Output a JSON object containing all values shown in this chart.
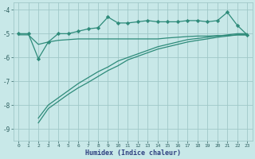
{
  "title": "",
  "xlabel": "Humidex (Indice chaleur)",
  "x": [
    0,
    1,
    2,
    3,
    4,
    5,
    6,
    7,
    8,
    9,
    10,
    11,
    12,
    13,
    14,
    15,
    16,
    17,
    18,
    19,
    20,
    21,
    22,
    23
  ],
  "line1_y": [
    -5.0,
    -5.0,
    -6.05,
    -5.35,
    -5.0,
    -5.0,
    -4.9,
    -4.8,
    -4.75,
    -4.3,
    -4.55,
    -4.55,
    -4.5,
    -4.45,
    -4.5,
    -4.5,
    -4.5,
    -4.45,
    -4.45,
    -4.5,
    -4.45,
    -4.1,
    -4.65,
    -5.05
  ],
  "line2_y": [
    -5.05,
    -5.05,
    -5.45,
    -5.35,
    -5.28,
    -5.25,
    -5.22,
    -5.22,
    -5.22,
    -5.22,
    -5.22,
    -5.22,
    -5.22,
    -5.22,
    -5.22,
    -5.18,
    -5.15,
    -5.12,
    -5.1,
    -5.1,
    -5.08,
    -5.08,
    -5.05,
    -5.05
  ],
  "line3_y": [
    null,
    null,
    -8.55,
    -8.0,
    -7.7,
    -7.4,
    -7.1,
    -6.85,
    -6.6,
    -6.4,
    -6.15,
    -6.0,
    -5.85,
    -5.7,
    -5.55,
    -5.45,
    -5.35,
    -5.25,
    -5.2,
    -5.15,
    -5.1,
    -5.05,
    -5.0,
    -5.0
  ],
  "line4_y": [
    null,
    null,
    -8.75,
    -8.15,
    -7.85,
    -7.55,
    -7.28,
    -7.05,
    -6.8,
    -6.55,
    -6.35,
    -6.1,
    -5.95,
    -5.8,
    -5.65,
    -5.55,
    -5.45,
    -5.35,
    -5.28,
    -5.22,
    -5.15,
    -5.1,
    -5.05,
    -5.05
  ],
  "color": "#2e8b7a",
  "bg_color": "#c8e8e8",
  "grid_color": "#a0c8c8",
  "ylim": [
    -9.5,
    -3.7
  ],
  "xlim": [
    -0.5,
    23.5
  ],
  "yticks": [
    -9,
    -8,
    -7,
    -6,
    -5,
    -4
  ],
  "xticks": [
    0,
    1,
    2,
    3,
    4,
    5,
    6,
    7,
    8,
    9,
    10,
    11,
    12,
    13,
    14,
    15,
    16,
    17,
    18,
    19,
    20,
    21,
    22,
    23
  ],
  "tick_color": "#2e6060",
  "label_color": "#2e4080",
  "marker": "D",
  "markersize": 2.2
}
